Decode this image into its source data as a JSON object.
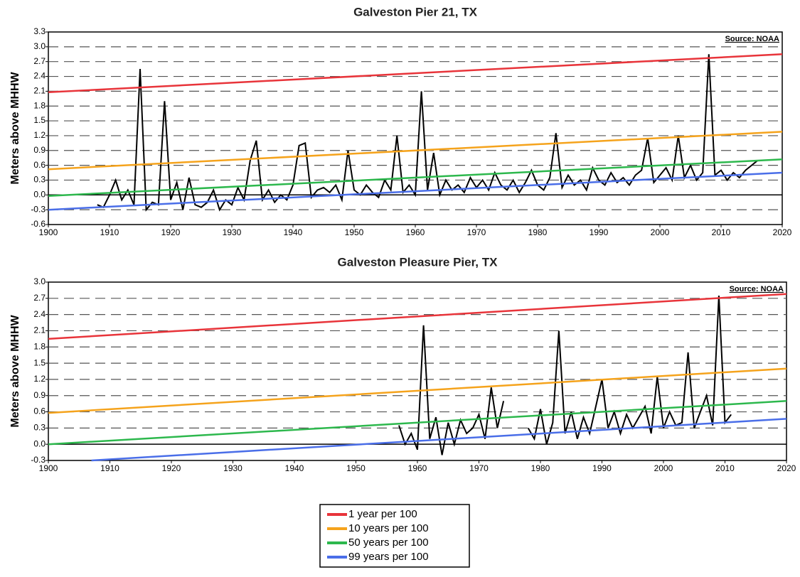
{
  "chart_data": [
    {
      "type": "line",
      "title": "Galveston Pier 21, TX",
      "ylabel": "Meters above MHHW",
      "annotation": "Source: NOAA",
      "xlim": [
        1900,
        2020
      ],
      "xticks": [
        1900,
        1910,
        1920,
        1930,
        1940,
        1950,
        1960,
        1970,
        1980,
        1990,
        2000,
        2010,
        2020
      ],
      "ylim": [
        -0.6,
        3.3
      ],
      "yticks": [
        -0.6,
        -0.3,
        {
          "value": 0,
          "label": "0.0"
        },
        0.3,
        0.6,
        0.9,
        1.2,
        1.5,
        1.8,
        2.1,
        2.4,
        2.7,
        {
          "value": 3,
          "label": "3.0"
        },
        3.3
      ],
      "grid": true,
      "series": [
        {
          "name": "1 year per 100",
          "color": "#e8343a",
          "x": [
            1900,
            2020
          ],
          "values": [
            2.08,
            2.85
          ]
        },
        {
          "name": "10 years per 100",
          "color": "#f5a31c",
          "x": [
            1900,
            2020
          ],
          "values": [
            0.52,
            1.28
          ]
        },
        {
          "name": "50 years per 100",
          "color": "#2db84d",
          "x": [
            1900,
            2020
          ],
          "values": [
            -0.02,
            0.72
          ]
        },
        {
          "name": "99 years per 100",
          "color": "#4a6ee8",
          "x": [
            1900,
            2020
          ],
          "values": [
            -0.3,
            0.45
          ]
        },
        {
          "color": "#000000",
          "x": [
            1908,
            1909,
            1910,
            1911,
            1912,
            1913,
            1914,
            1915,
            1916,
            1917,
            1918,
            1919,
            1920,
            1921,
            1922,
            1923,
            1924,
            1925,
            1926,
            1927,
            1928,
            1929,
            1930,
            1931,
            1932,
            1933,
            1934,
            1935,
            1936,
            1937,
            1938,
            1939,
            1940,
            1941,
            1942,
            1943,
            1944,
            1945,
            1946,
            1947,
            1948,
            1949,
            1950,
            1951,
            1952,
            1953,
            1954,
            1955,
            1956,
            1957,
            1958,
            1959,
            1960,
            1961,
            1962,
            1963,
            1964,
            1965,
            1966,
            1967,
            1968,
            1969,
            1970,
            1971,
            1972,
            1973,
            1974,
            1975,
            1976,
            1977,
            1978,
            1979,
            1980,
            1981,
            1982,
            1983,
            1984,
            1985,
            1986,
            1987,
            1988,
            1989,
            1990,
            1991,
            1992,
            1993,
            1994,
            1995,
            1996,
            1997,
            1998,
            1999,
            2000,
            2001,
            2002,
            2003,
            2004,
            2005,
            2006,
            2007,
            2008,
            2009,
            2010,
            2011,
            2012,
            2013,
            2014,
            2015,
            2016
          ],
          "values": [
            -0.2,
            -0.25,
            0.0,
            0.3,
            -0.1,
            0.1,
            -0.2,
            2.55,
            -0.3,
            -0.15,
            -0.2,
            1.9,
            -0.1,
            0.25,
            -0.3,
            0.35,
            -0.2,
            -0.25,
            -0.15,
            0.1,
            -0.3,
            -0.1,
            -0.2,
            0.15,
            -0.1,
            0.7,
            1.1,
            -0.1,
            0.1,
            -0.15,
            0.0,
            -0.1,
            0.2,
            1.0,
            1.05,
            -0.05,
            0.1,
            0.15,
            0.05,
            0.2,
            -0.1,
            0.9,
            0.1,
            0.0,
            0.2,
            0.05,
            -0.05,
            0.3,
            0.1,
            1.2,
            0.05,
            0.2,
            0.0,
            2.1,
            0.1,
            0.85,
            0.0,
            0.3,
            0.1,
            0.2,
            0.05,
            0.35,
            0.15,
            0.3,
            0.1,
            0.45,
            0.2,
            0.1,
            0.3,
            0.05,
            0.25,
            0.5,
            0.2,
            0.1,
            0.35,
            1.25,
            0.15,
            0.4,
            0.2,
            0.3,
            0.1,
            0.55,
            0.3,
            0.2,
            0.45,
            0.25,
            0.35,
            0.2,
            0.4,
            0.5,
            1.15,
            0.25,
            0.4,
            0.55,
            0.3,
            1.2,
            0.35,
            0.6,
            0.3,
            0.45,
            2.85,
            0.4,
            0.5,
            0.3,
            0.45,
            0.35,
            0.5,
            0.6,
            0.7
          ]
        }
      ]
    },
    {
      "type": "line",
      "title": "Galveston Pleasure Pier, TX",
      "ylabel": "Meters above MHHW",
      "annotation": "Source: NOAA",
      "xlim": [
        1900,
        2020
      ],
      "xticks": [
        1900,
        1910,
        1920,
        1930,
        1940,
        1950,
        1960,
        1970,
        1980,
        1990,
        2000,
        2010,
        2020
      ],
      "ylim": [
        -0.3,
        3.0
      ],
      "yticks": [
        -0.3,
        {
          "value": 0,
          "label": "0.0"
        },
        0.3,
        0.6,
        0.9,
        1.2,
        1.5,
        1.8,
        2.1,
        2.4,
        2.7,
        {
          "value": 3,
          "label": "3.0"
        }
      ],
      "grid": true,
      "series": [
        {
          "color": "#e8343a",
          "x": [
            1900,
            2020
          ],
          "values": [
            1.95,
            2.78
          ]
        },
        {
          "color": "#f5a31c",
          "x": [
            1900,
            2020
          ],
          "values": [
            0.58,
            1.4
          ]
        },
        {
          "color": "#2db84d",
          "x": [
            1900,
            2020
          ],
          "values": [
            0.0,
            0.8
          ]
        },
        {
          "color": "#4a6ee8",
          "x": [
            1907,
            2020
          ],
          "values": [
            -0.3,
            0.47
          ]
        },
        {
          "color": "#000000",
          "x": [
            1957,
            1958,
            1959,
            1960,
            1961,
            1962,
            1963,
            1964,
            1965,
            1966,
            1967,
            1968,
            1969,
            1970,
            1971,
            1972,
            1973,
            1974,
            1975,
            1976,
            1977,
            1978,
            1979,
            1980,
            1981,
            1982,
            1983,
            1984,
            1985,
            1986,
            1987,
            1988,
            1989,
            1990,
            1991,
            1992,
            1993,
            1994,
            1995,
            1996,
            1997,
            1998,
            1999,
            2000,
            2001,
            2002,
            2003,
            2004,
            2005,
            2006,
            2007,
            2008,
            2009,
            2010,
            2011
          ],
          "values": [
            0.35,
            0.0,
            0.2,
            -0.1,
            2.2,
            0.1,
            0.5,
            -0.2,
            0.4,
            0.0,
            0.45,
            0.2,
            0.3,
            0.55,
            0.1,
            1.05,
            0.3,
            0.8,
            null,
            null,
            null,
            0.3,
            0.1,
            0.65,
            0.0,
            0.4,
            2.1,
            0.2,
            0.6,
            0.1,
            0.5,
            0.2,
            0.7,
            1.2,
            0.3,
            0.6,
            0.2,
            0.55,
            0.3,
            0.5,
            0.7,
            0.2,
            1.25,
            0.3,
            0.6,
            0.35,
            0.4,
            1.7,
            0.3,
            0.6,
            0.9,
            0.35,
            2.75,
            0.4,
            0.55
          ]
        }
      ]
    }
  ]
}
